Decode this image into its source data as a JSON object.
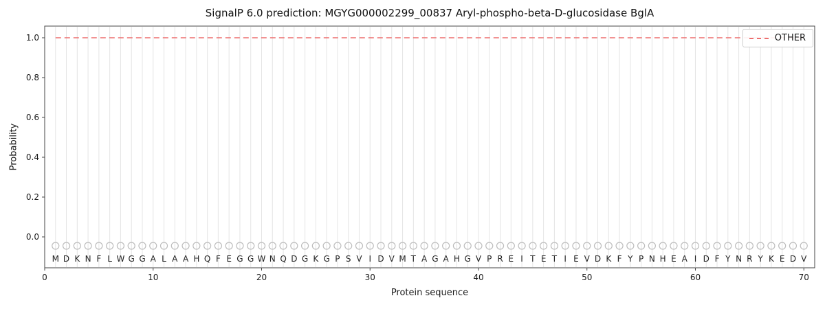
{
  "figure": {
    "title": "SignalP 6.0 prediction: MGYG000002299_00837 Aryl-phospho-beta-D-glucosidase BglA",
    "xlabel": "Protein sequence",
    "ylabel": "Probability"
  },
  "legend": {
    "label": "OTHER",
    "line_color": "#ed6e6e",
    "line_style": "dashed"
  },
  "sequence": "MDKNFLWGGALAAHQFEGGWNQDGKGPSVIDVMTAGAHGVPREITETIEVDKFYPNHEAIDFYNRYKEDV",
  "chart_data": {
    "type": "line",
    "title": "SignalP 6.0 prediction: MGYG000002299_00837 Aryl-phospho-beta-D-glucosidase BglA",
    "xlabel": "Protein sequence",
    "ylabel": "Probability",
    "x": [
      1,
      2,
      3,
      4,
      5,
      6,
      7,
      8,
      9,
      10,
      11,
      12,
      13,
      14,
      15,
      16,
      17,
      18,
      19,
      20,
      21,
      22,
      23,
      24,
      25,
      26,
      27,
      28,
      29,
      30,
      31,
      32,
      33,
      34,
      35,
      36,
      37,
      38,
      39,
      40,
      41,
      42,
      43,
      44,
      45,
      46,
      47,
      48,
      49,
      50,
      51,
      52,
      53,
      54,
      55,
      56,
      57,
      58,
      59,
      60,
      61,
      62,
      63,
      64,
      65,
      66,
      67,
      68,
      69,
      70
    ],
    "series": [
      {
        "name": "OTHER",
        "color": "#ed6e6e",
        "style": "dashed",
        "values": [
          1.0,
          1.0,
          1.0,
          1.0,
          1.0,
          1.0,
          1.0,
          1.0,
          1.0,
          1.0,
          1.0,
          1.0,
          1.0,
          1.0,
          1.0,
          1.0,
          1.0,
          1.0,
          1.0,
          1.0,
          1.0,
          1.0,
          1.0,
          1.0,
          1.0,
          1.0,
          1.0,
          1.0,
          1.0,
          1.0,
          1.0,
          1.0,
          1.0,
          1.0,
          1.0,
          1.0,
          1.0,
          1.0,
          1.0,
          1.0,
          1.0,
          1.0,
          1.0,
          1.0,
          1.0,
          1.0,
          1.0,
          1.0,
          1.0,
          1.0,
          1.0,
          1.0,
          1.0,
          1.0,
          1.0,
          1.0,
          1.0,
          1.0,
          1.0,
          1.0,
          1.0,
          1.0,
          1.0,
          1.0,
          1.0,
          1.0,
          1.0,
          1.0,
          1.0,
          1.0
        ]
      }
    ],
    "sequence_labels": [
      "M",
      "D",
      "K",
      "N",
      "F",
      "L",
      "W",
      "G",
      "G",
      "A",
      "L",
      "A",
      "A",
      "H",
      "Q",
      "F",
      "E",
      "G",
      "G",
      "W",
      "N",
      "Q",
      "D",
      "G",
      "K",
      "G",
      "P",
      "S",
      "V",
      "I",
      "D",
      "V",
      "M",
      "T",
      "A",
      "G",
      "A",
      "H",
      "G",
      "V",
      "P",
      "R",
      "E",
      "I",
      "T",
      "E",
      "T",
      "I",
      "E",
      "V",
      "D",
      "K",
      "F",
      "Y",
      "P",
      "N",
      "H",
      "E",
      "A",
      "I",
      "D",
      "F",
      "Y",
      "N",
      "R",
      "Y",
      "K",
      "E",
      "D",
      "V"
    ],
    "xlim": [
      0,
      71
    ],
    "ylim": [
      -0.155,
      1.058
    ],
    "xticks": [
      0,
      10,
      20,
      30,
      40,
      50,
      60,
      70
    ],
    "yticks": [
      "0.0",
      "0.2",
      "0.4",
      "0.6",
      "0.8",
      "1.0"
    ],
    "grid": "vertical lines at each residue position",
    "legend_position": "upper right"
  }
}
